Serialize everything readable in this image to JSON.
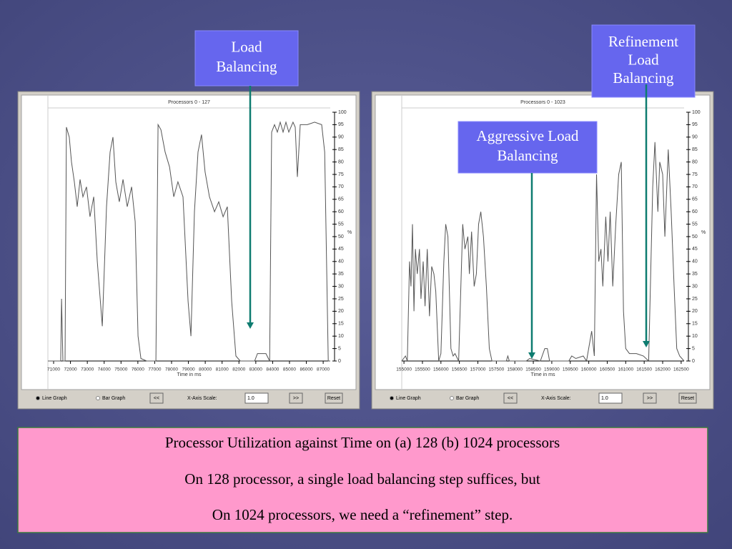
{
  "chart_data": [
    {
      "type": "line",
      "title": "Processors 0 - 127",
      "x_label": "Time in ms",
      "y_label": "%",
      "color": "#555555",
      "x": [
        70660,
        71420,
        71470,
        71550,
        71680,
        71760,
        71930,
        72060,
        72230,
        72400,
        72570,
        72740,
        72950,
        73160,
        73380,
        73590,
        73890,
        74140,
        74350,
        74520,
        74690,
        74900,
        75120,
        75370,
        75630,
        75840,
        76010,
        76180,
        76520,
        77070,
        77200,
        77370,
        77620,
        77880,
        78130,
        78380,
        78680,
        78980,
        79150,
        79360,
        79570,
        79780,
        79990,
        80250,
        80550,
        80800,
        81060,
        81310,
        81570,
        81820,
        82080,
        82930,
        83100,
        83600,
        83820,
        83940,
        84110,
        84280,
        84450,
        84620,
        84790,
        84960,
        85210,
        85340,
        85470,
        85640,
        86060,
        86490,
        86910,
        87090,
        87300,
        87420
      ],
      "values": [
        0,
        0,
        25,
        0,
        0,
        94,
        90,
        80,
        72,
        62,
        73,
        66,
        70,
        58,
        66,
        40,
        14,
        62,
        84,
        90,
        72,
        64,
        73,
        62,
        70,
        56,
        10,
        1,
        0,
        0,
        95,
        93,
        84,
        78,
        66,
        72,
        66,
        24,
        10,
        60,
        84,
        91,
        76,
        66,
        60,
        64,
        58,
        62,
        24,
        2,
        0,
        0,
        3,
        3,
        0,
        92,
        95,
        92,
        96,
        92,
        96,
        92,
        96,
        94,
        74,
        95,
        95,
        96,
        95,
        84,
        0,
        0
      ],
      "xlim": [
        70660,
        87420
      ],
      "xticks": [
        71000,
        72000,
        73000,
        74000,
        75000,
        76000,
        77000,
        78000,
        79000,
        80000,
        81000,
        82000,
        83000,
        84000,
        85000,
        86000,
        87000
      ],
      "ylim": [
        0,
        100
      ],
      "yticks": [
        0,
        5,
        10,
        15,
        20,
        25,
        30,
        35,
        40,
        45,
        50,
        55,
        60,
        65,
        70,
        75,
        80,
        85,
        90,
        95,
        100
      ]
    },
    {
      "type": "line",
      "title": "Processors 0 - 1023",
      "x_label": "Time in ms",
      "y_label": "%",
      "color": "#555555",
      "x": [
        154940,
        155040,
        155090,
        155150,
        155190,
        155230,
        155270,
        155310,
        155360,
        155420,
        155460,
        155520,
        155570,
        155630,
        155690,
        155750,
        155810,
        155860,
        155940,
        156000,
        156080,
        156130,
        156190,
        156270,
        156330,
        156380,
        156480,
        156540,
        156590,
        156650,
        156730,
        156770,
        156830,
        156900,
        156960,
        157020,
        157080,
        157150,
        157230,
        157310,
        157380,
        157770,
        157810,
        157850,
        158310,
        158400,
        158690,
        158810,
        158880,
        158940,
        159460,
        159540,
        159650,
        159850,
        159940,
        160080,
        160150,
        160210,
        160270,
        160330,
        160380,
        160460,
        160520,
        160580,
        160650,
        160730,
        160810,
        160880,
        160940,
        161000,
        161100,
        161290,
        161480,
        161620,
        161730,
        161790,
        161870,
        161920,
        162000,
        162060,
        162150,
        162230,
        162310,
        162380,
        162460,
        162580
      ],
      "values": [
        0,
        2,
        0,
        40,
        30,
        55,
        20,
        45,
        35,
        45,
        25,
        40,
        22,
        45,
        18,
        38,
        35,
        28,
        0,
        3,
        40,
        55,
        50,
        5,
        2,
        3,
        0,
        30,
        55,
        45,
        50,
        35,
        52,
        30,
        35,
        55,
        60,
        50,
        30,
        5,
        0,
        0,
        2,
        0,
        0,
        1,
        0,
        5,
        5,
        0,
        0,
        2,
        1,
        2,
        0,
        12,
        2,
        75,
        40,
        45,
        30,
        58,
        40,
        60,
        30,
        55,
        75,
        80,
        20,
        5,
        3,
        3,
        2,
        0,
        70,
        88,
        60,
        80,
        75,
        50,
        85,
        60,
        30,
        5,
        2,
        0
      ],
      "xlim": [
        154940,
        162580
      ],
      "xticks": [
        155000,
        155500,
        156000,
        156500,
        157000,
        157500,
        158000,
        158500,
        159000,
        159500,
        160000,
        160500,
        161000,
        161500,
        162000,
        162500
      ],
      "ylim": [
        0,
        100
      ],
      "yticks": [
        0,
        5,
        10,
        15,
        20,
        25,
        30,
        35,
        40,
        45,
        50,
        55,
        60,
        65,
        70,
        75,
        80,
        85,
        90,
        95,
        100
      ]
    }
  ],
  "controls": [
    "Line Graph",
    "Bar Graph",
    "<<",
    "X-Axis Scale:",
    "1.0",
    ">>",
    "Reset"
  ],
  "callouts": [
    {
      "lines": [
        "Load",
        "Balancing"
      ]
    },
    {
      "lines": [
        "Aggressive Load",
        "Balancing"
      ]
    },
    {
      "lines": [
        "Refinement",
        "Load",
        "Balancing"
      ]
    }
  ],
  "caption": [
    "Processor Utilization against Time on (a) 128 (b) 1024 processors",
    "On 128 processor, a single load balancing step suffices, but",
    "On 1024 processors, we need a “refinement” step."
  ]
}
